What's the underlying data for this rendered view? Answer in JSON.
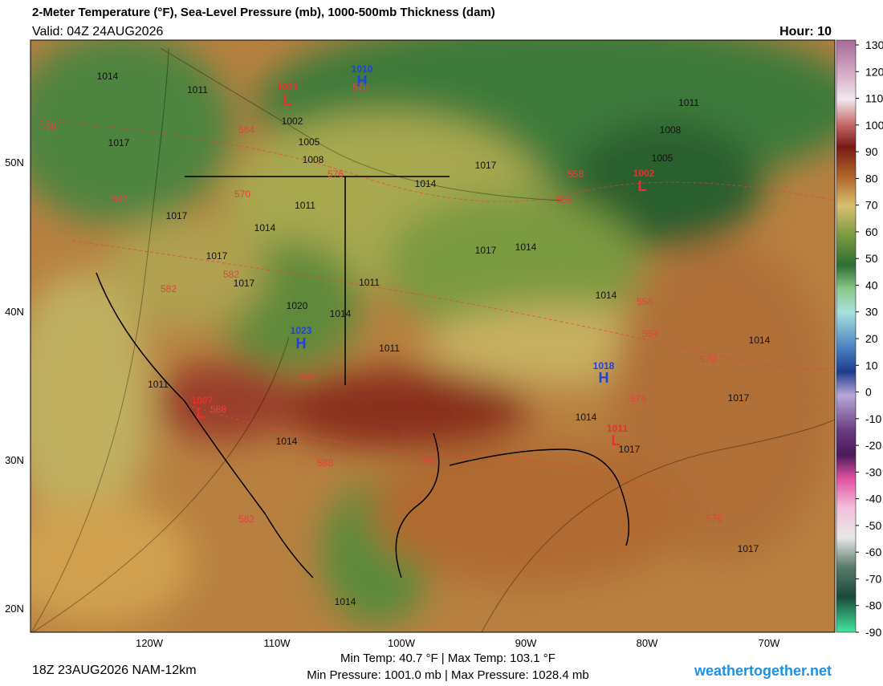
{
  "header": {
    "title": "2-Meter Temperature (°F), Sea-Level Pressure (mb), 1000-500mb Thickness (dam)",
    "valid": "Valid: 04Z 24AUG2026",
    "hour": "Hour: 10"
  },
  "colorbar": {
    "ticks": [
      130,
      120,
      110,
      100,
      90,
      80,
      70,
      60,
      50,
      40,
      30,
      20,
      10,
      0,
      -10,
      -20,
      -30,
      -40,
      -50,
      -60,
      -70,
      -80,
      -90
    ]
  },
  "axes": {
    "longitudes": [
      "120W",
      "110W",
      "100W",
      "90W",
      "80W",
      "70W"
    ],
    "latitudes": [
      "50N",
      "40N",
      "30N",
      "20N"
    ]
  },
  "pressure_centers": [
    {
      "letter": "L",
      "value": "1001"
    },
    {
      "letter": "H",
      "value": "1010"
    },
    {
      "letter": "H",
      "value": "1023"
    },
    {
      "letter": "H",
      "value": "1018"
    },
    {
      "letter": "L",
      "value": "1002"
    },
    {
      "letter": "L",
      "value": "1007"
    },
    {
      "letter": "L",
      "value": "1011"
    }
  ],
  "isobar_labels": [
    "1014",
    "1011",
    "1002",
    "1005",
    "1008",
    "1017",
    "1014",
    "1011",
    "1017",
    "1014",
    "1017",
    "1020",
    "1014",
    "1011",
    "1017",
    "1011",
    "1017",
    "1014",
    "1014",
    "1011",
    "1008",
    "1005",
    "1017",
    "1014",
    "1011",
    "1014",
    "1017",
    "1014",
    "1017",
    "1014",
    "1017"
  ],
  "thickness_labels": [
    "558",
    "564",
    "570",
    "576",
    "564",
    "570",
    "582",
    "582",
    "588",
    "588",
    "588",
    "582",
    "588",
    "558",
    "558",
    "558",
    "564",
    "570",
    "576",
    "576"
  ],
  "footer": {
    "run": "18Z 23AUG2026 NAM-12km",
    "temps": "Min Temp:  40.7 °F | Max Temp: 103.1 °F",
    "pressures": "Min Pressure: 1001.0 mb | Max Pressure: 1028.4 mb",
    "site": "weathertogether.net"
  }
}
